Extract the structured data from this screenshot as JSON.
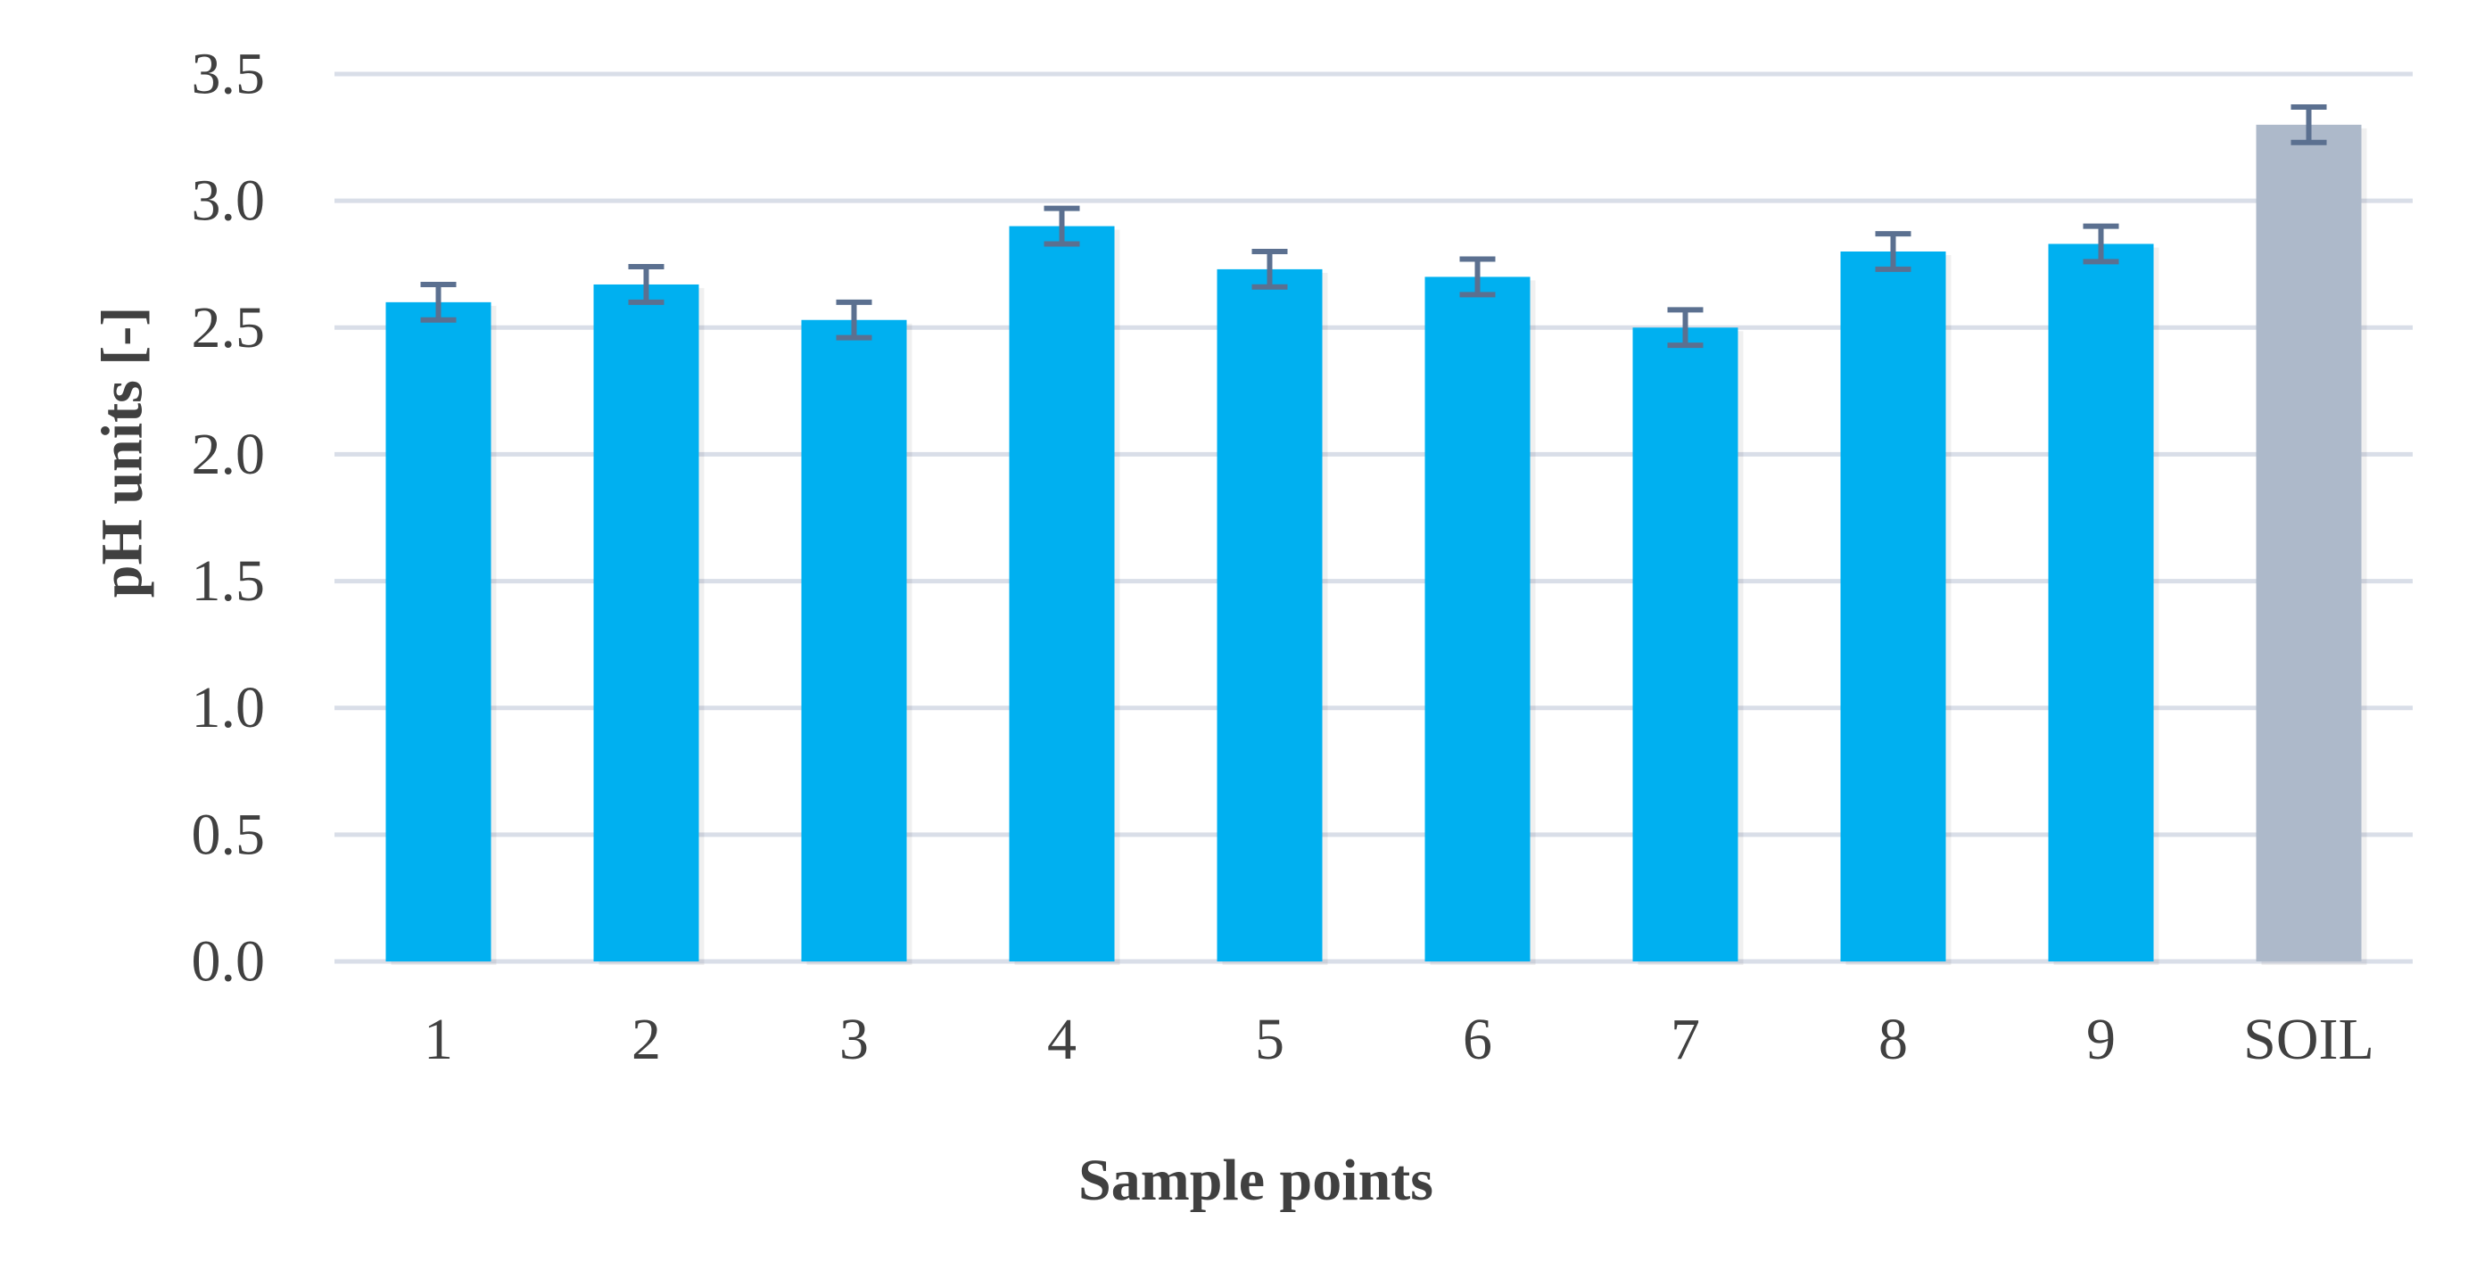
{
  "chart_data": {
    "type": "bar",
    "title": "",
    "xlabel": "Sample points",
    "ylabel": "pH units [-]",
    "ylim": [
      0,
      3.5
    ],
    "yticks": [
      "0.0",
      "0.5",
      "1.0",
      "1.5",
      "2.0",
      "2.5",
      "3.0",
      "3.5"
    ],
    "categories": [
      "1",
      "2",
      "3",
      "4",
      "5",
      "6",
      "7",
      "8",
      "9",
      "SOIL"
    ],
    "values": [
      2.6,
      2.67,
      2.53,
      2.9,
      2.73,
      2.7,
      2.5,
      2.8,
      2.83,
      3.3
    ],
    "errors": [
      0.07,
      0.07,
      0.07,
      0.07,
      0.07,
      0.07,
      0.07,
      0.07,
      0.07,
      0.07
    ],
    "grid": true,
    "legend": "none",
    "colors": {
      "bar": "#00B0F0",
      "soil_bar": "#ADB9CA",
      "error_bar": "#5B7090",
      "grid": "#D9DEE8",
      "text": "#404040"
    }
  }
}
